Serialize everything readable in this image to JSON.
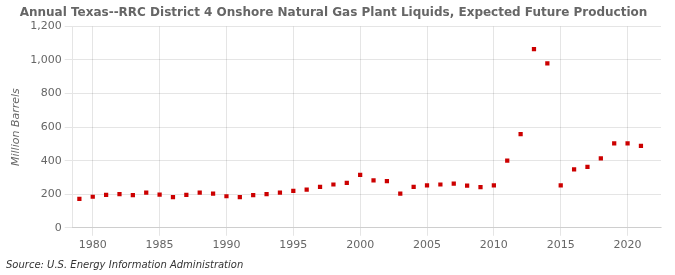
{
  "chart_data": {
    "type": "scatter",
    "title": "Annual Texas--RRC District 4 Onshore Natural Gas Plant Liquids, Expected Future Production",
    "ylabel": "Million Barrels",
    "annotations": [
      "Source: U.S. Energy Information Administration"
    ],
    "x": [
      1979,
      1980,
      1981,
      1982,
      1983,
      1984,
      1985,
      1986,
      1987,
      1988,
      1989,
      1990,
      1991,
      1992,
      1993,
      1994,
      1995,
      1996,
      1997,
      1998,
      1999,
      2000,
      2001,
      2002,
      2003,
      2004,
      2005,
      2006,
      2007,
      2008,
      2009,
      2010,
      2011,
      2012,
      2013,
      2014,
      2015,
      2016,
      2017,
      2018,
      2019,
      2020,
      2021
    ],
    "values": [
      172,
      185,
      196,
      200,
      194,
      210,
      198,
      183,
      196,
      210,
      204,
      188,
      183,
      194,
      200,
      210,
      220,
      228,
      244,
      258,
      268,
      315,
      282,
      278,
      203,
      244,
      253,
      258,
      263,
      252,
      242,
      253,
      400,
      558,
      1065,
      980,
      253,
      348,
      363,
      413,
      503,
      503,
      488
    ],
    "color": "#cc0000",
    "marker": "square",
    "xlim": [
      1978.5,
      2022.5
    ],
    "ylim": [
      0,
      1200
    ],
    "xticks": [
      1980,
      1985,
      1990,
      1995,
      2000,
      2005,
      2010,
      2015,
      2020
    ],
    "yticks": [
      0,
      200,
      400,
      600,
      800,
      {
        "value": 1000,
        "label": "1,000"
      },
      {
        "value": 1200,
        "label": "1,200"
      }
    ],
    "grid": true
  }
}
